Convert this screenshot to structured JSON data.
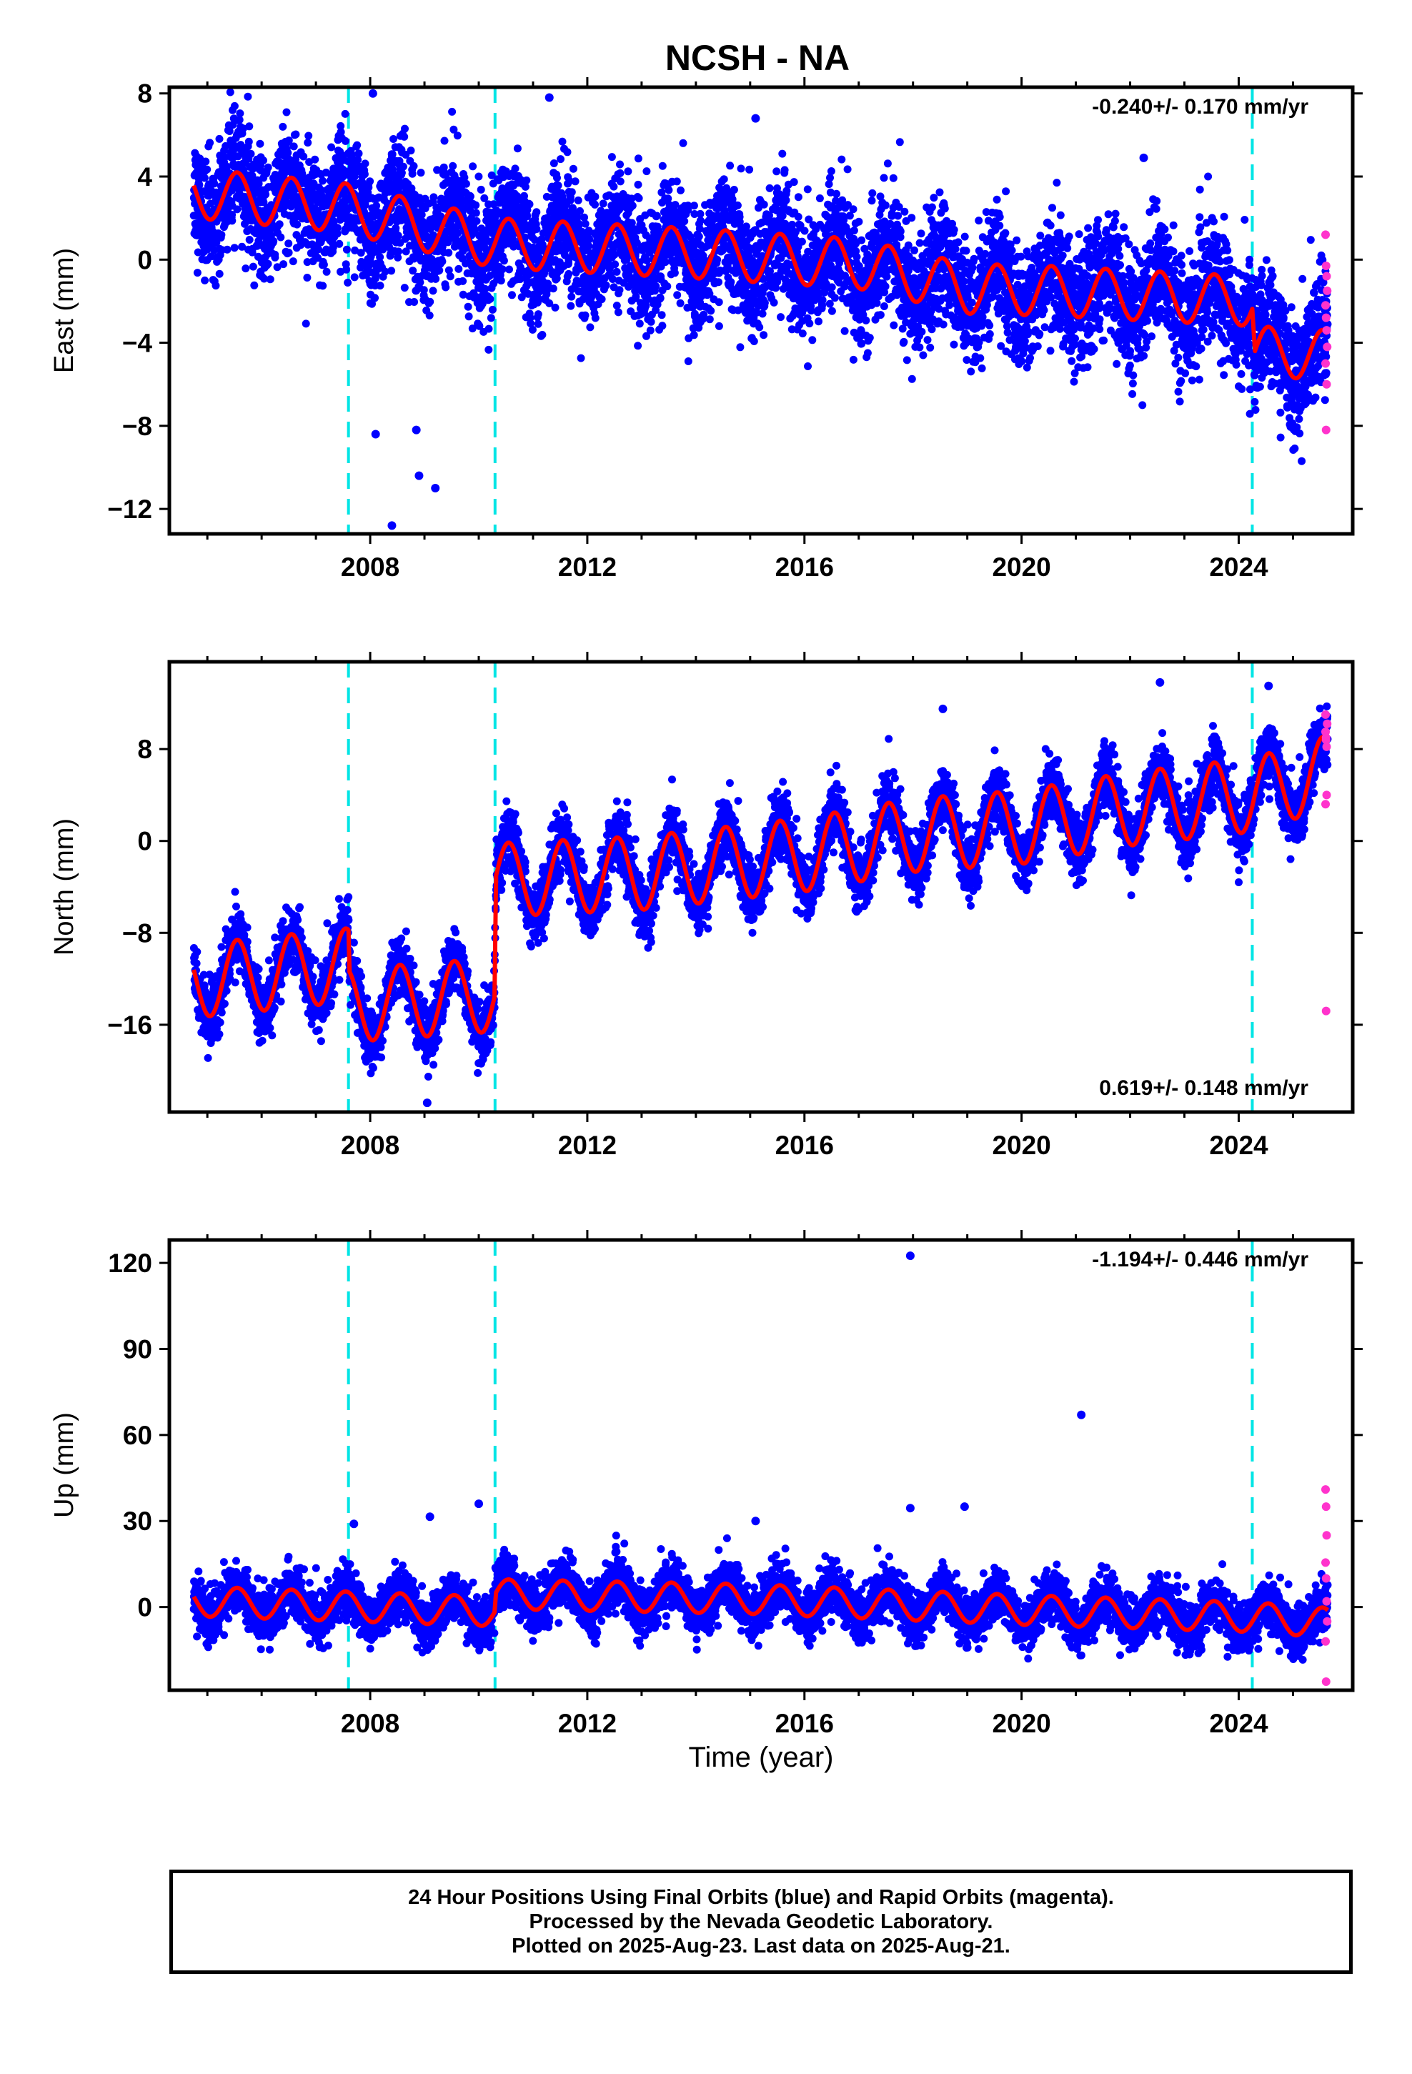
{
  "title": "NCSH - NA",
  "colors": {
    "final_orbits": "#0000ff",
    "rapid_orbits": "#ff33cc",
    "model_fit": "#ff0000",
    "offset_lines": "#00e5e5",
    "axes": "#000000"
  },
  "xlabel": "Time (year)",
  "caption": {
    "line1": "24 Hour Positions Using Final Orbits (blue) and Rapid Orbits (magenta).",
    "line2": "Processed by the Nevada Geodetic Laboratory.",
    "line3": "Plotted on 2025-Aug-23. Last data on 2025-Aug-21."
  },
  "chart_data": [
    {
      "type": "scatter",
      "panel": "east",
      "ylabel": "East (mm)",
      "rate_label": "-0.240+/- 0.170 mm/yr",
      "rate_position": "top-right",
      "xlim": [
        2004.3,
        2026.1
      ],
      "ylim": [
        -13.2,
        8.3
      ],
      "xticks": [
        2008,
        2012,
        2016,
        2020,
        2024
      ],
      "yticks": [
        8,
        4,
        0,
        -4,
        -8,
        -12
      ],
      "ytick_labels": [
        "8",
        "4",
        "0",
        "−4",
        "−8",
        "−12"
      ],
      "offset_epochs": [
        2007.6,
        2010.3,
        2024.25
      ],
      "data_start": 2004.75,
      "data_end": 2025.64,
      "trend": [
        [
          2004.75,
          3.2
        ],
        [
          2007.5,
          2.5
        ],
        [
          2010.3,
          0.8
        ],
        [
          2014,
          0.3
        ],
        [
          2017,
          -0.2
        ],
        [
          2019,
          -1.4
        ],
        [
          2020.5,
          -1.5
        ],
        [
          2024.25,
          -2.0
        ],
        [
          2024.3,
          -4.4
        ],
        [
          2025.64,
          -4.6
        ]
      ],
      "seasonal_amplitude": 1.2,
      "scatter_sd": 1.4,
      "outliers": [
        [
          2008.4,
          -12.8
        ],
        [
          2008.9,
          -10.4
        ],
        [
          2009.2,
          -11.0
        ],
        [
          2008.1,
          -8.4
        ],
        [
          2008.85,
          -8.2
        ],
        [
          2022.25,
          4.9
        ],
        [
          2008.05,
          8.0
        ],
        [
          2011.3,
          7.8
        ],
        [
          2015.1,
          6.8
        ]
      ],
      "rapid_points": [
        [
          2025.6,
          1.2
        ],
        [
          2025.61,
          -0.3
        ],
        [
          2025.62,
          -0.8
        ],
        [
          2025.63,
          -1.5
        ],
        [
          2025.6,
          -2.2
        ],
        [
          2025.61,
          -2.8
        ],
        [
          2025.62,
          -3.4
        ],
        [
          2025.63,
          -4.2
        ],
        [
          2025.6,
          -5.0
        ],
        [
          2025.62,
          -6.0
        ],
        [
          2025.61,
          -8.2
        ]
      ]
    },
    {
      "type": "scatter",
      "panel": "north",
      "ylabel": "North (mm)",
      "rate_label": "0.619+/- 0.148 mm/yr",
      "rate_position": "bottom-right",
      "xlim": [
        2004.3,
        2026.1
      ],
      "ylim": [
        -23.6,
        15.6
      ],
      "xticks": [
        2008,
        2012,
        2016,
        2020,
        2024
      ],
      "yticks": [
        8,
        0,
        -8,
        -16
      ],
      "ytick_labels": [
        "8",
        "0",
        "−8",
        "−16"
      ],
      "offset_epochs": [
        2007.6,
        2010.3,
        2024.25
      ],
      "data_start": 2004.75,
      "data_end": 2025.64,
      "trend": [
        [
          2004.75,
          -12.2
        ],
        [
          2007.6,
          -10.8
        ],
        [
          2007.62,
          -14.3
        ],
        [
          2010.29,
          -13.4
        ],
        [
          2010.32,
          -3.4
        ],
        [
          2013,
          -2.8
        ],
        [
          2016,
          -1.2
        ],
        [
          2018,
          0.5
        ],
        [
          2020,
          1.2
        ],
        [
          2022,
          2.8
        ],
        [
          2024.25,
          4.0
        ],
        [
          2025.64,
          6.0
        ]
      ],
      "seasonal_amplitude": 3.2,
      "scatter_sd": 1.3,
      "outliers": [
        [
          2009.05,
          -22.8
        ],
        [
          2018.55,
          11.5
        ],
        [
          2022.55,
          13.8
        ],
        [
          2024.55,
          13.5
        ]
      ],
      "rapid_points": [
        [
          2025.6,
          9.5
        ],
        [
          2025.61,
          8.8
        ],
        [
          2025.62,
          8.2
        ],
        [
          2025.63,
          10.2
        ],
        [
          2025.6,
          11.0
        ],
        [
          2025.61,
          9.0
        ],
        [
          2025.62,
          4.0
        ],
        [
          2025.6,
          3.2
        ],
        [
          2025.61,
          -14.8
        ]
      ]
    },
    {
      "type": "scatter",
      "panel": "up",
      "ylabel": "Up (mm)",
      "rate_label": "-1.194+/- 0.446 mm/yr",
      "rate_position": "top-right",
      "xlim": [
        2004.3,
        2026.1
      ],
      "ylim": [
        -29,
        128
      ],
      "xticks": [
        2008,
        2012,
        2016,
        2020,
        2024
      ],
      "yticks": [
        120,
        90,
        60,
        30,
        0
      ],
      "ytick_labels": [
        "120",
        "90",
        "60",
        "30",
        "0"
      ],
      "offset_epochs": [
        2007.6,
        2010.3,
        2024.25
      ],
      "data_start": 2004.75,
      "data_end": 2025.64,
      "trend": [
        [
          2004.75,
          2.0
        ],
        [
          2010.29,
          -1.5
        ],
        [
          2010.32,
          4.5
        ],
        [
          2015,
          2.8
        ],
        [
          2020,
          -1.0
        ],
        [
          2024.25,
          -3.5
        ],
        [
          2025.64,
          -5.5
        ]
      ],
      "seasonal_amplitude": 5.2,
      "scatter_sd": 4.2,
      "outliers": [
        [
          2017.95,
          122.5
        ],
        [
          2021.1,
          67.0
        ],
        [
          2017.95,
          34.5
        ],
        [
          2018.95,
          35.0
        ],
        [
          2010.0,
          36.0
        ],
        [
          2009.1,
          31.5
        ],
        [
          2015.1,
          30.0
        ],
        [
          2007.7,
          29.0
        ]
      ],
      "rapid_points": [
        [
          2025.6,
          41.0
        ],
        [
          2025.61,
          35.0
        ],
        [
          2025.62,
          25.0
        ],
        [
          2025.6,
          15.5
        ],
        [
          2025.61,
          10.0
        ],
        [
          2025.62,
          2.0
        ],
        [
          2025.63,
          -5.0
        ],
        [
          2025.6,
          -12.0
        ],
        [
          2025.61,
          -26.0
        ]
      ]
    }
  ]
}
